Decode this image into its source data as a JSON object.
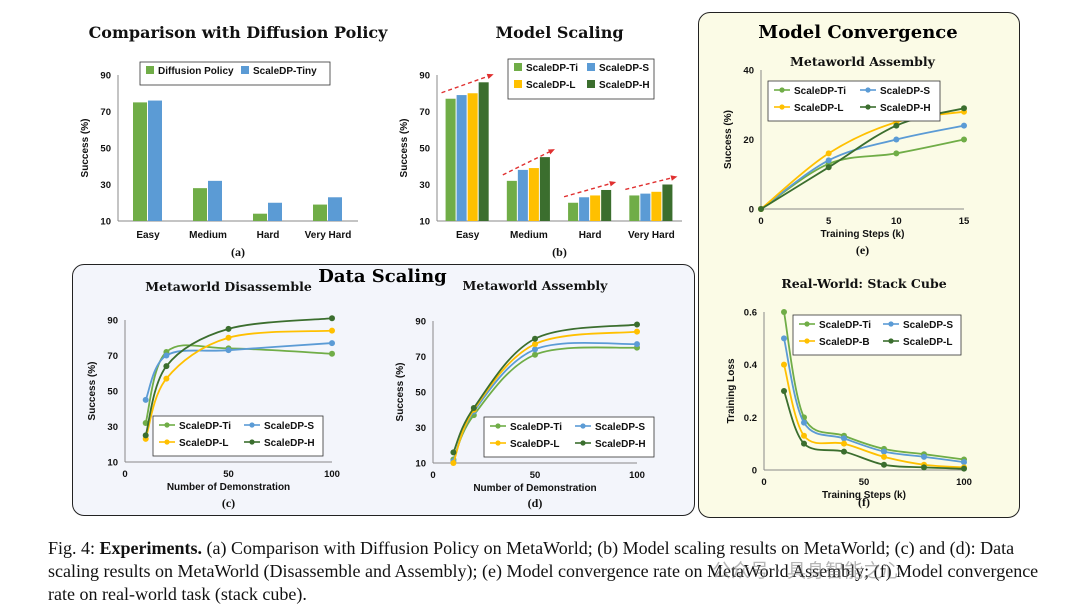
{
  "caption": {
    "prefix": "Fig. 4:",
    "bold": "Experiments.",
    "body": " (a) Comparison with Diffusion Policy on MetaWorld; (b) Model scaling results on MetaWorld; (c) and (d): Data scaling results on MetaWorld (Disassemble and Assembly); (e) Model convergence rate on MetaWorld Assembly; (f) Model convergence rate on real-world task (stack cube)."
  },
  "watermark": "公众号 · 具身智能之心",
  "sections": {
    "data_scaling": "Data Scaling",
    "model_convergence": "Model Convergence"
  },
  "colors": {
    "green_light": "#70ad47",
    "blue": "#5b9bd5",
    "yellow": "#ffc000",
    "green_dark": "#3b6e2e",
    "trend_arrow": "#e03030",
    "convergence_bg": "#fbfbe6",
    "data_scaling_bg": "#f3f5fb"
  },
  "chart_data": [
    {
      "id": "a",
      "type": "bar",
      "title": "Comparison with Diffusion Policy",
      "sublabel": "(a)",
      "ylabel": "Success (%)",
      "xlabel": "",
      "ylim": [
        10,
        90
      ],
      "yticks": [
        10,
        30,
        50,
        70,
        90
      ],
      "categories": [
        "Easy",
        "Medium",
        "Hard",
        "Very Hard"
      ],
      "legend": "top",
      "series": [
        {
          "name": "Diffusion Policy",
          "color": "#70ad47",
          "values": [
            75,
            28,
            14,
            19
          ]
        },
        {
          "name": "ScaleDP-Tiny",
          "color": "#5b9bd5",
          "values": [
            76,
            32,
            20,
            23
          ]
        }
      ]
    },
    {
      "id": "b",
      "type": "bar",
      "title": "Model Scaling",
      "sublabel": "(b)",
      "ylabel": "Success (%)",
      "xlabel": "",
      "ylim": [
        10,
        90
      ],
      "yticks": [
        10,
        30,
        50,
        70,
        90
      ],
      "categories": [
        "Easy",
        "Medium",
        "Hard",
        "Very Hard"
      ],
      "legend": "top-right",
      "trend_arrows": true,
      "series": [
        {
          "name": "ScaleDP-Ti",
          "color": "#70ad47",
          "values": [
            77,
            32,
            20,
            24
          ]
        },
        {
          "name": "ScaleDP-S",
          "color": "#5b9bd5",
          "values": [
            79,
            38,
            23,
            25
          ]
        },
        {
          "name": "ScaleDP-L",
          "color": "#ffc000",
          "values": [
            80,
            39,
            24,
            26
          ]
        },
        {
          "name": "ScaleDP-H",
          "color": "#3b6e2e",
          "values": [
            86,
            45,
            27,
            30
          ]
        }
      ]
    },
    {
      "id": "c",
      "type": "line",
      "title": "Metaworld Disassemble",
      "sublabel": "(c)",
      "ylabel": "Success (%)",
      "xlabel": "Number of Demonstration",
      "xlim": [
        0,
        100
      ],
      "ylim": [
        10,
        90
      ],
      "xticks": [
        0,
        50,
        100
      ],
      "yticks": [
        10,
        30,
        50,
        70,
        90
      ],
      "legend": "bottom",
      "series": [
        {
          "name": "ScaleDP-Ti",
          "color": "#70ad47",
          "x": [
            10,
            20,
            50,
            100
          ],
          "y": [
            32,
            72,
            74,
            71
          ]
        },
        {
          "name": "ScaleDP-S",
          "color": "#5b9bd5",
          "x": [
            10,
            20,
            50,
            100
          ],
          "y": [
            45,
            70,
            73,
            77
          ]
        },
        {
          "name": "ScaleDP-L",
          "color": "#ffc000",
          "x": [
            10,
            20,
            50,
            100
          ],
          "y": [
            23,
            57,
            80,
            84
          ]
        },
        {
          "name": "ScaleDP-H",
          "color": "#3b6e2e",
          "x": [
            10,
            20,
            50,
            100
          ],
          "y": [
            25,
            64,
            85,
            91
          ]
        }
      ]
    },
    {
      "id": "d",
      "type": "line",
      "title": "Metaworld Assembly",
      "sublabel": "(d)",
      "ylabel": "Success (%)",
      "xlabel": "Number of Demonstration",
      "xlim": [
        0,
        100
      ],
      "ylim": [
        10,
        90
      ],
      "xticks": [
        0,
        50,
        100
      ],
      "yticks": [
        10,
        30,
        50,
        70,
        90
      ],
      "legend": "bottom",
      "series": [
        {
          "name": "ScaleDP-Ti",
          "color": "#70ad47",
          "x": [
            10,
            20,
            50,
            100
          ],
          "y": [
            12,
            37,
            71,
            75
          ]
        },
        {
          "name": "ScaleDP-S",
          "color": "#5b9bd5",
          "x": [
            10,
            20,
            50,
            100
          ],
          "y": [
            11,
            39,
            74,
            77
          ]
        },
        {
          "name": "ScaleDP-L",
          "color": "#ffc000",
          "x": [
            10,
            20,
            50,
            100
          ],
          "y": [
            10,
            40,
            77,
            84
          ]
        },
        {
          "name": "ScaleDP-H",
          "color": "#3b6e2e",
          "x": [
            10,
            20,
            50,
            100
          ],
          "y": [
            16,
            41,
            80,
            88
          ]
        }
      ]
    },
    {
      "id": "e",
      "type": "line",
      "title": "Metaworld Assembly",
      "sublabel": "(e)",
      "ylabel": "Success (%)",
      "xlabel": "Training Steps (k)",
      "xlim": [
        0,
        15
      ],
      "ylim": [
        0,
        40
      ],
      "xticks": [
        0,
        5,
        10,
        15
      ],
      "yticks": [
        0,
        20,
        40
      ],
      "legend": "top",
      "series": [
        {
          "name": "ScaleDP-Ti",
          "color": "#70ad47",
          "x": [
            0,
            5,
            10,
            15
          ],
          "y": [
            0,
            13,
            16,
            20
          ]
        },
        {
          "name": "ScaleDP-S",
          "color": "#5b9bd5",
          "x": [
            0,
            5,
            10,
            15
          ],
          "y": [
            0,
            14,
            20,
            24
          ]
        },
        {
          "name": "ScaleDP-L",
          "color": "#ffc000",
          "x": [
            0,
            5,
            10,
            15
          ],
          "y": [
            0,
            16,
            25,
            28
          ]
        },
        {
          "name": "ScaleDP-H",
          "color": "#3b6e2e",
          "x": [
            0,
            5,
            10,
            15
          ],
          "y": [
            0,
            12,
            24,
            29
          ]
        }
      ]
    },
    {
      "id": "f",
      "type": "line",
      "title": "Real-World: Stack Cube",
      "sublabel": "(f)",
      "ylabel": "Training Loss",
      "xlabel": "Training Steps (k)",
      "xlim": [
        0,
        100
      ],
      "ylim": [
        0,
        0.6
      ],
      "xticks": [
        0,
        50,
        100
      ],
      "yticks": [
        0,
        0.2,
        0.4,
        0.6
      ],
      "legend": "top",
      "series": [
        {
          "name": "ScaleDP-Ti",
          "color": "#70ad47",
          "x": [
            10,
            20,
            40,
            60,
            80,
            100
          ],
          "y": [
            0.6,
            0.2,
            0.13,
            0.08,
            0.06,
            0.04
          ]
        },
        {
          "name": "ScaleDP-S",
          "color": "#5b9bd5",
          "x": [
            10,
            20,
            40,
            60,
            80,
            100
          ],
          "y": [
            0.5,
            0.18,
            0.12,
            0.07,
            0.05,
            0.03
          ]
        },
        {
          "name": "ScaleDP-B",
          "color": "#ffc000",
          "x": [
            10,
            20,
            40,
            60,
            80,
            100
          ],
          "y": [
            0.4,
            0.13,
            0.1,
            0.05,
            0.02,
            0.01
          ]
        },
        {
          "name": "ScaleDP-L",
          "color": "#3b6e2e",
          "x": [
            10,
            20,
            40,
            60,
            80,
            100
          ],
          "y": [
            0.3,
            0.1,
            0.07,
            0.02,
            0.01,
            0.005
          ]
        }
      ]
    }
  ]
}
